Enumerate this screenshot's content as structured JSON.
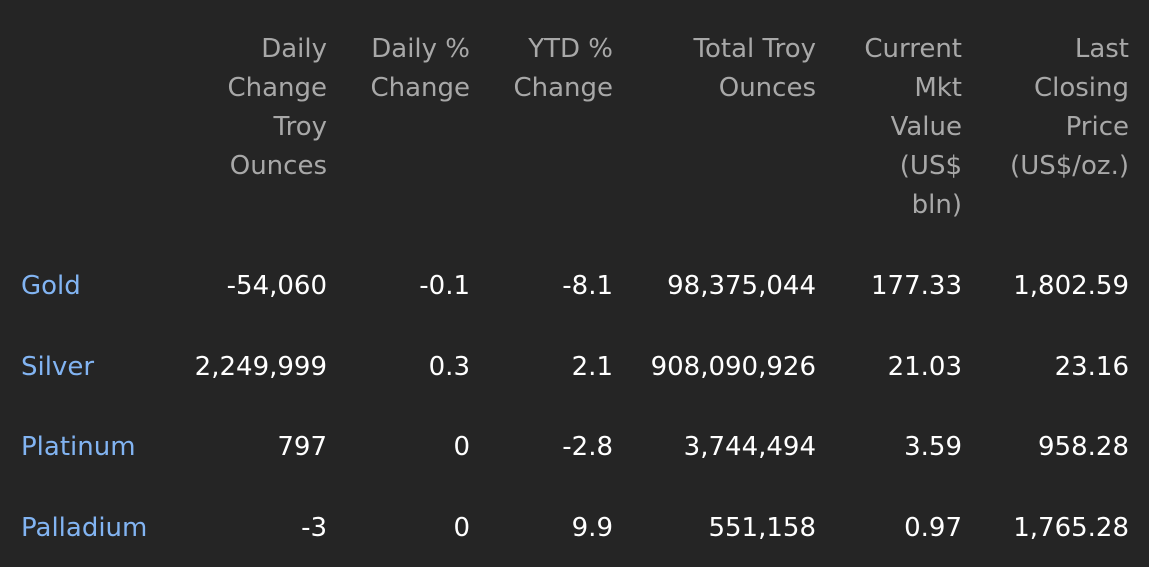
{
  "headers": [
    "Daily Change Troy Ounces",
    "Daily % Change",
    "YTD % Change",
    "Total Troy Ounces",
    "Current Mkt Value (US$ bln)",
    "Last Closing Price (US$/oz.)"
  ],
  "rows": [
    {
      "name": "Gold",
      "daily_change_oz": "-54,060",
      "daily_pct": "-0.1",
      "ytd_pct": "-8.1",
      "total_oz": "98,375,044",
      "mkt_value": "177.33",
      "last_close": "1,802.59"
    },
    {
      "name": "Silver",
      "daily_change_oz": "2,249,999",
      "daily_pct": "0.3",
      "ytd_pct": "2.1",
      "total_oz": "908,090,926",
      "mkt_value": "21.03",
      "last_close": "23.16"
    },
    {
      "name": "Platinum",
      "daily_change_oz": "797",
      "daily_pct": "0",
      "ytd_pct": "-2.8",
      "total_oz": "3,744,494",
      "mkt_value": "3.59",
      "last_close": "958.28"
    },
    {
      "name": "Palladium",
      "daily_change_oz": "-3",
      "daily_pct": "0",
      "ytd_pct": "9.9",
      "total_oz": "551,158",
      "mkt_value": "0.97",
      "last_close": "1,765.28"
    }
  ],
  "colors": {
    "background": "#252525",
    "header_text": "#a8a8a8",
    "value_text": "#ffffff",
    "link_text": "#82b4f2"
  }
}
